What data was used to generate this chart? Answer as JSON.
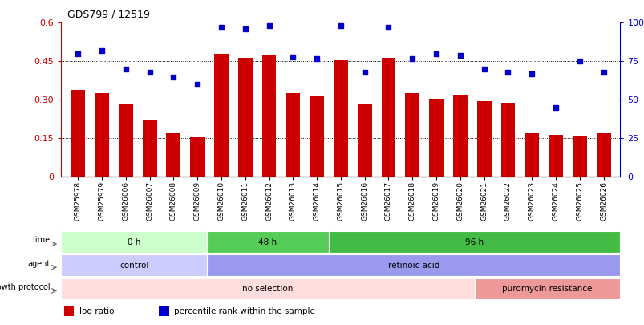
{
  "title": "GDS799 / 12519",
  "samples": [
    "GSM25978",
    "GSM25979",
    "GSM26006",
    "GSM26007",
    "GSM26008",
    "GSM26009",
    "GSM26010",
    "GSM26011",
    "GSM26012",
    "GSM26013",
    "GSM26014",
    "GSM26015",
    "GSM26016",
    "GSM26017",
    "GSM26018",
    "GSM26019",
    "GSM26020",
    "GSM26021",
    "GSM26022",
    "GSM26023",
    "GSM26024",
    "GSM26025",
    "GSM26026"
  ],
  "log_ratio": [
    0.34,
    0.325,
    0.285,
    0.22,
    0.17,
    0.155,
    0.48,
    0.465,
    0.475,
    0.325,
    0.315,
    0.455,
    0.285,
    0.465,
    0.325,
    0.305,
    0.32,
    0.295,
    0.29,
    0.17,
    0.165,
    0.16,
    0.17
  ],
  "percentile": [
    80,
    82,
    70,
    68,
    65,
    60,
    97,
    96,
    98,
    78,
    77,
    98,
    68,
    97,
    77,
    80,
    79,
    70,
    68,
    67,
    45,
    75,
    68
  ],
  "bar_color": "#cc0000",
  "dot_color": "#0000cc",
  "ylim_left": [
    0,
    0.6
  ],
  "ylim_right": [
    0,
    100
  ],
  "yticks_left": [
    0,
    0.15,
    0.3,
    0.45,
    0.6
  ],
  "yticks_right": [
    0,
    25,
    50,
    75,
    100
  ],
  "ytick_labels_left": [
    "0",
    "0.15",
    "0.30",
    "0.45",
    "0.6"
  ],
  "ytick_labels_right": [
    "0",
    "25",
    "50",
    "75",
    "100%"
  ],
  "hlines": [
    0.15,
    0.3,
    0.45
  ],
  "time_groups": [
    {
      "label": "0 h",
      "start": 0,
      "end": 6,
      "color": "#ccffcc"
    },
    {
      "label": "48 h",
      "start": 6,
      "end": 11,
      "color": "#55cc55"
    },
    {
      "label": "96 h",
      "start": 11,
      "end": 23,
      "color": "#44bb44"
    }
  ],
  "agent_groups": [
    {
      "label": "control",
      "start": 0,
      "end": 6,
      "color": "#ccccff"
    },
    {
      "label": "retinoic acid",
      "start": 6,
      "end": 23,
      "color": "#9999ee"
    }
  ],
  "growth_groups": [
    {
      "label": "no selection",
      "start": 0,
      "end": 17,
      "color": "#ffdddd"
    },
    {
      "label": "puromycin resistance",
      "start": 17,
      "end": 23,
      "color": "#ee9999"
    }
  ],
  "legend_bar_label": "log ratio",
  "legend_dot_label": "percentile rank within the sample",
  "left_axis_color": "#cc0000",
  "right_axis_color": "#0000cc"
}
